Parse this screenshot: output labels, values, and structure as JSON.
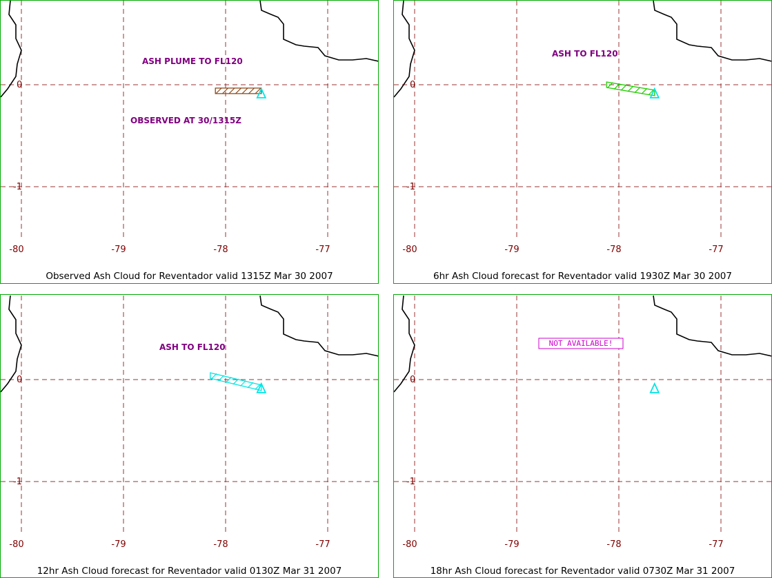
{
  "colors": {
    "frame": "#00aa00",
    "grid": "#993333",
    "tick": "#800000",
    "annotation": "#800080",
    "coast": "#000000",
    "volcano": "#00e5e5",
    "not_available": "#cc00cc"
  },
  "axes": {
    "lon_ticks": [
      "-80",
      "-79",
      "-78",
      "-77"
    ],
    "lat_ticks": [
      "0",
      "-1"
    ]
  },
  "panels": [
    {
      "caption": "Observed Ash Cloud for Reventador valid 1315Z Mar 30 2007",
      "annotations": [
        "ASH PLUME TO FL120",
        "OBSERVED AT 30/1315Z"
      ],
      "plume_color": "#8b4513",
      "plume": [
        [
          -78.1,
          -0.06
        ],
        [
          -77.65,
          -0.06
        ]
      ],
      "not_available": ""
    },
    {
      "caption": "6hr Ash Cloud forecast for Reventador valid 1930Z Mar 30 2007",
      "annotations": [
        "ASH TO FL120"
      ],
      "plume_color": "#22cc00",
      "plume": [
        [
          -78.12,
          0.0
        ],
        [
          -77.65,
          -0.08
        ]
      ],
      "not_available": ""
    },
    {
      "caption": "12hr Ash Cloud forecast for Reventador valid 0130Z Mar 31 2007",
      "annotations": [
        "ASH TO FL120"
      ],
      "plume_color": "#00e5e5",
      "plume": [
        [
          -78.15,
          0.04
        ],
        [
          -77.65,
          -0.08
        ]
      ],
      "not_available": ""
    },
    {
      "caption": "18hr Ash Cloud forecast for Reventador valid 0730Z Mar 31 2007",
      "annotations": [],
      "plume_color": "",
      "plume": [],
      "not_available": "NOT AVAILABLE!"
    }
  ],
  "volcano": {
    "name_icon": "volcano-triangle-icon",
    "lon": -77.65,
    "lat": -0.08
  }
}
